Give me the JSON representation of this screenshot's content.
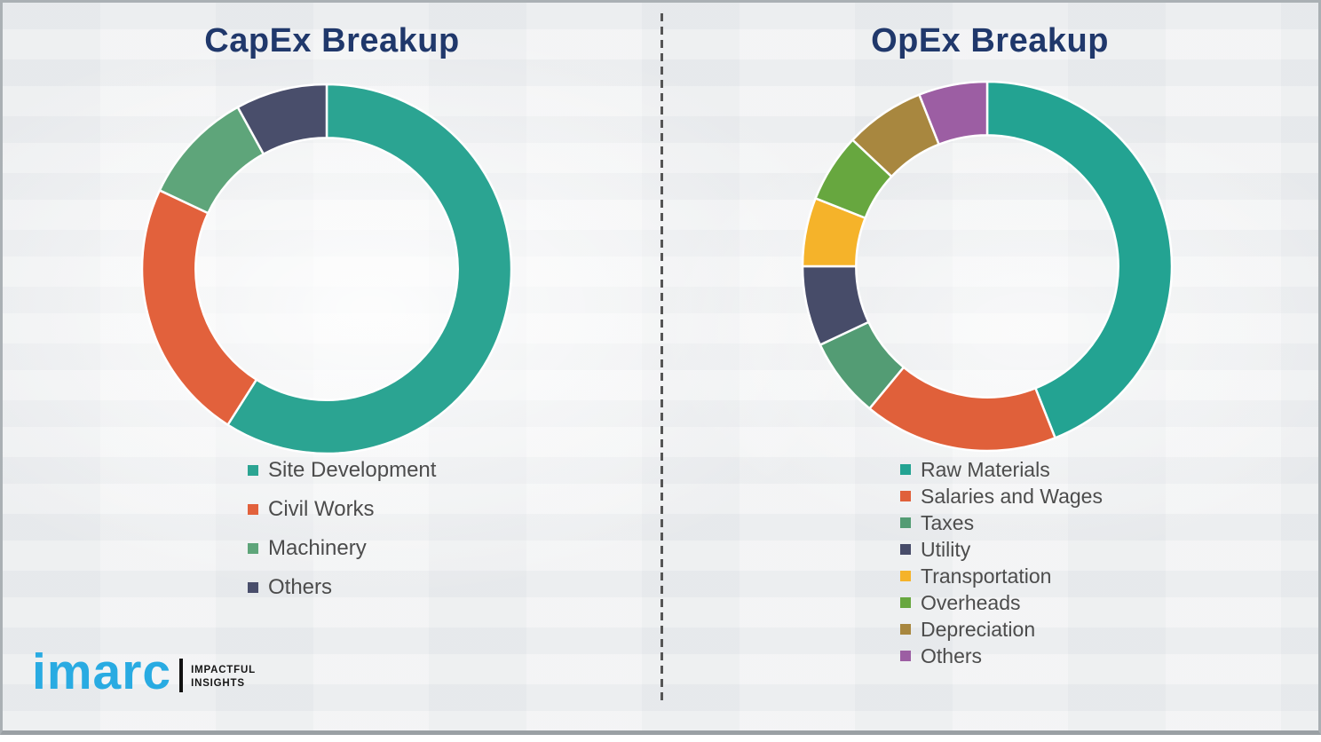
{
  "theme": {
    "canvas_bg": "#f2f3f4",
    "frame_border": "#aab0b4",
    "frame_border_bottom": "#9aa0a4",
    "divider_color": "#555555",
    "title_color": "#20386b",
    "legend_text_color": "#4c4c4c",
    "slice_gap_color": "#ffffff"
  },
  "chart_data": [
    {
      "type": "pie",
      "variant": "donut",
      "title": "CapEx Breakup",
      "legend_position": "bottom-left",
      "start_angle_deg": 0,
      "direction": "clockwise",
      "inner_radius_ratio": 0.71,
      "values_estimated_from_arc_angles": true,
      "segments": [
        {
          "label": "Site Development",
          "value": 59,
          "color": "#2ba492"
        },
        {
          "label": "Civil Works",
          "value": 23,
          "color": "#e2613c"
        },
        {
          "label": "Machinery",
          "value": 10,
          "color": "#5ea57a"
        },
        {
          "label": "Others",
          "value": 8,
          "color": "#494e6b"
        }
      ]
    },
    {
      "type": "pie",
      "variant": "donut",
      "title": "OpEx Breakup",
      "legend_position": "bottom-left",
      "start_angle_deg": 0,
      "direction": "clockwise",
      "inner_radius_ratio": 0.71,
      "values_estimated_from_arc_angles": true,
      "segments": [
        {
          "label": "Raw Materials",
          "value": 44,
          "color": "#23a392"
        },
        {
          "label": "Salaries and Wages",
          "value": 17,
          "color": "#e0603a"
        },
        {
          "label": "Taxes",
          "value": 7,
          "color": "#539c74"
        },
        {
          "label": "Utility",
          "value": 7,
          "color": "#474c69"
        },
        {
          "label": "Transportation",
          "value": 6,
          "color": "#f5b32a"
        },
        {
          "label": "Overheads",
          "value": 6,
          "color": "#67a73f"
        },
        {
          "label": "Depreciation",
          "value": 7,
          "color": "#a8873f"
        },
        {
          "label": "Others",
          "value": 6,
          "color": "#9c5ea3"
        }
      ]
    }
  ],
  "logo": {
    "brand": "imarc",
    "tagline_line1": "IMPACTFUL",
    "tagline_line2": "INSIGHTS",
    "brand_color": "#29abe2",
    "tagline_color": "#161616",
    "bar_color": "#111111"
  }
}
